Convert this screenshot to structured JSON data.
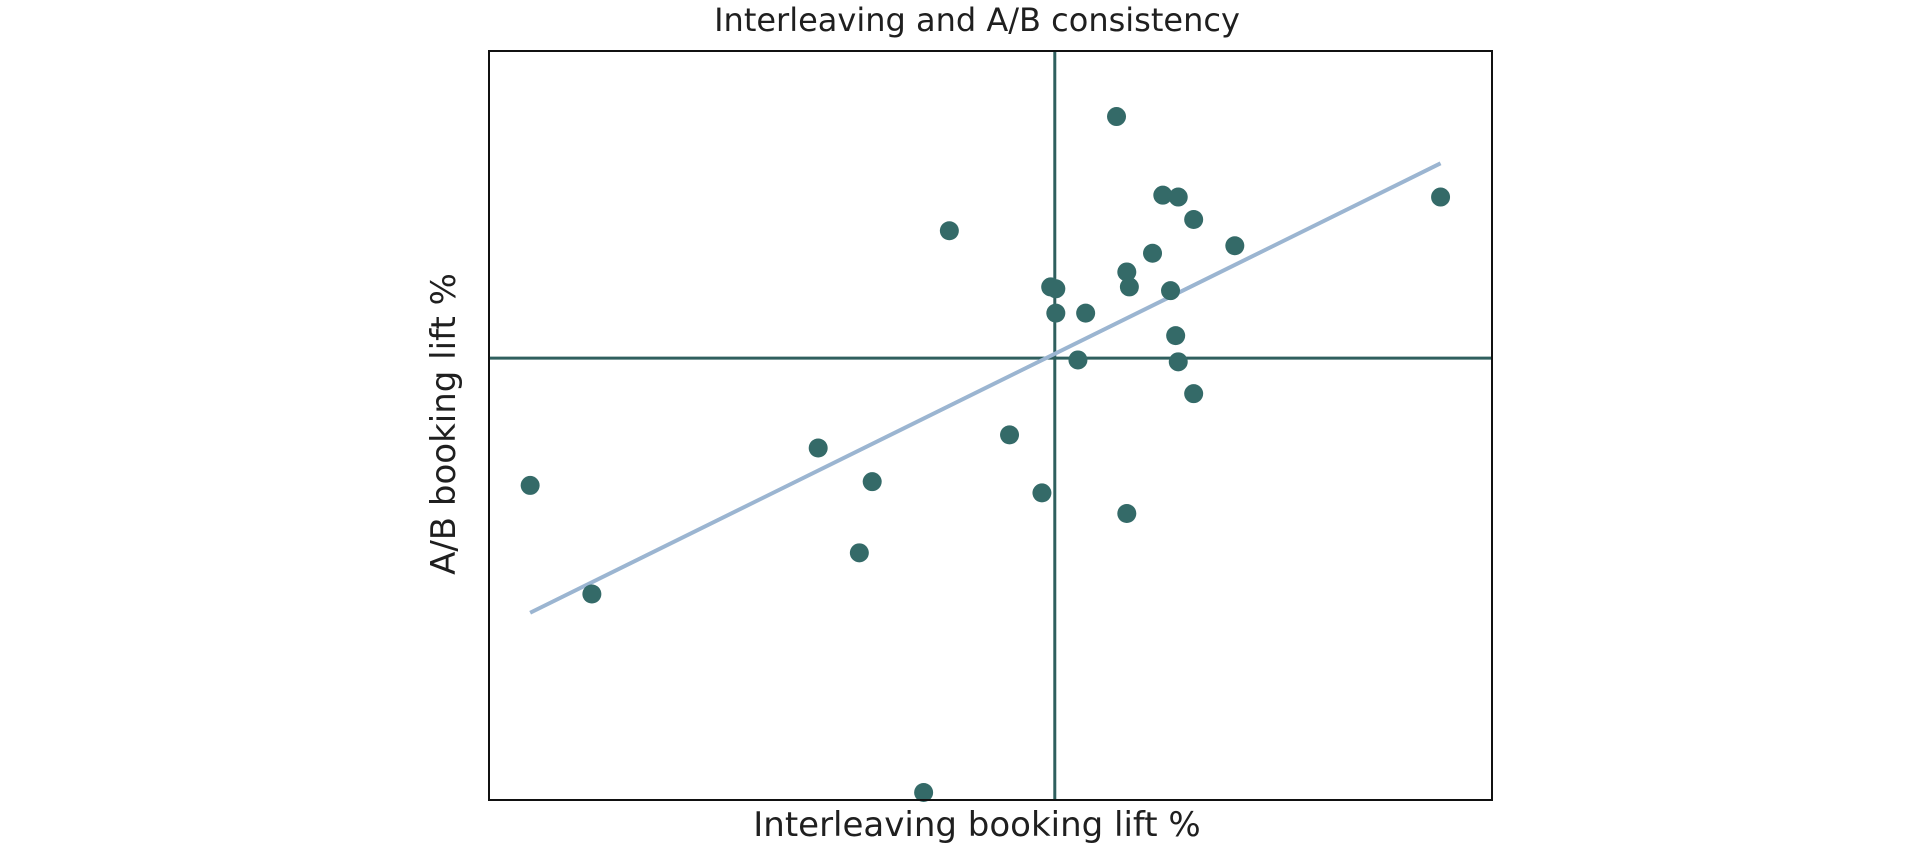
{
  "chart_data": {
    "type": "scatter",
    "title": "Interleaving and A/B consistency",
    "xlabel": "Interleaving booking lift %",
    "ylabel": "A/B booking lift %",
    "xlim": [
      -1.1,
      0.85
    ],
    "ylim": [
      -1.18,
      0.82
    ],
    "grid": false,
    "axis_ticks": false,
    "reference_lines": {
      "x": 0,
      "y": 0
    },
    "trendline": {
      "x": [
        -1.02,
        0.75
      ],
      "y": [
        -0.68,
        0.52
      ]
    },
    "points": [
      {
        "x": -1.02,
        "y": -0.34
      },
      {
        "x": -0.9,
        "y": -0.63
      },
      {
        "x": -0.46,
        "y": -0.24
      },
      {
        "x": -0.38,
        "y": -0.52
      },
      {
        "x": -0.355,
        "y": -0.33
      },
      {
        "x": -0.255,
        "y": -1.16
      },
      {
        "x": -0.205,
        "y": 0.34
      },
      {
        "x": -0.088,
        "y": -0.205
      },
      {
        "x": -0.025,
        "y": -0.36
      },
      {
        "x": -0.008,
        "y": 0.19
      },
      {
        "x": 0.002,
        "y": 0.185
      },
      {
        "x": 0.002,
        "y": 0.12
      },
      {
        "x": 0.045,
        "y": -0.005
      },
      {
        "x": 0.06,
        "y": 0.12
      },
      {
        "x": 0.12,
        "y": 0.645
      },
      {
        "x": 0.14,
        "y": 0.23
      },
      {
        "x": 0.145,
        "y": 0.19
      },
      {
        "x": 0.14,
        "y": -0.415
      },
      {
        "x": 0.19,
        "y": 0.28
      },
      {
        "x": 0.21,
        "y": 0.435
      },
      {
        "x": 0.225,
        "y": 0.18
      },
      {
        "x": 0.235,
        "y": 0.06
      },
      {
        "x": 0.24,
        "y": 0.43
      },
      {
        "x": 0.24,
        "y": -0.01
      },
      {
        "x": 0.27,
        "y": 0.37
      },
      {
        "x": 0.27,
        "y": -0.095
      },
      {
        "x": 0.35,
        "y": 0.3
      },
      {
        "x": 0.75,
        "y": 0.43
      }
    ],
    "colors": {
      "points": "#346A68",
      "reference_lines": "#2F5F5E",
      "trendline": "#9BB5D1",
      "frame": "#111111",
      "background": "#FFFFFF"
    }
  }
}
